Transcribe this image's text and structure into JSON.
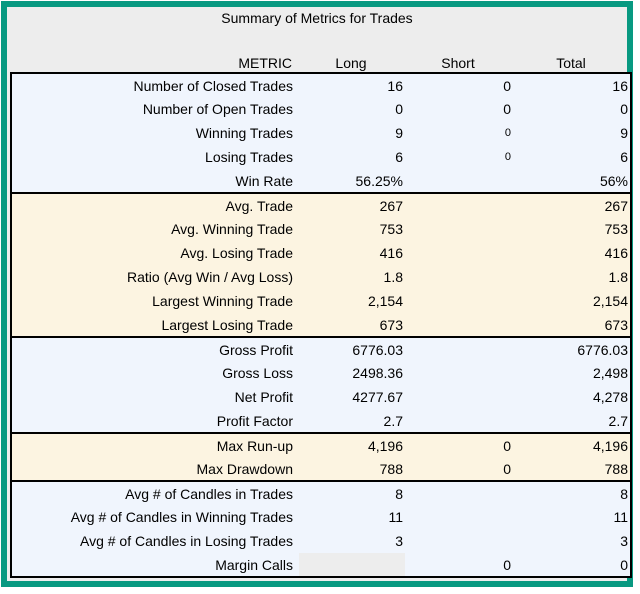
{
  "title": "Summary of Metrics for Trades",
  "columns": {
    "metric": "METRIC",
    "long": "Long",
    "short": "Short",
    "total": "Total"
  },
  "colors": {
    "frame_border": "#089981",
    "canvas_background": "#EDEDED",
    "section_blue": "#F0F5FD",
    "section_cream": "#FCF4E1",
    "placeholder_cell": "#EDEDED",
    "table_border": "#000000",
    "text": "#000000"
  },
  "chart_data": {
    "type": "table",
    "title": "Summary of Metrics for Trades",
    "columns": [
      "METRIC",
      "Long",
      "Short",
      "Total"
    ],
    "sections": [
      {
        "bg": "blue",
        "rows": [
          {
            "metric": "Number of Closed Trades",
            "long": "16",
            "short": "0",
            "total": "16"
          },
          {
            "metric": "Number of Open Trades",
            "long": "0",
            "short": "0",
            "total": "0"
          },
          {
            "metric": "Winning Trades",
            "long": "9",
            "short": "0",
            "total": "9",
            "short_small": true
          },
          {
            "metric": "Losing Trades",
            "long": "6",
            "short": "0",
            "total": "6",
            "short_small": true
          },
          {
            "metric": "Win Rate",
            "long": "56.25%",
            "short": "",
            "total": "56%"
          }
        ]
      },
      {
        "bg": "cream",
        "rows": [
          {
            "metric": "Avg. Trade",
            "long": "267",
            "short": "",
            "total": "267"
          },
          {
            "metric": "Avg. Winning Trade",
            "long": "753",
            "short": "",
            "total": "753"
          },
          {
            "metric": "Avg. Losing Trade",
            "long": "416",
            "short": "",
            "total": "416"
          },
          {
            "metric": "Ratio (Avg Win / Avg Loss)",
            "long": "1.8",
            "short": "",
            "total": "1.8"
          },
          {
            "metric": "Largest Winning Trade",
            "long": "2,154",
            "short": "",
            "total": "2,154"
          },
          {
            "metric": "Largest Losing Trade",
            "long": "673",
            "short": "",
            "total": "673"
          }
        ]
      },
      {
        "bg": "blue",
        "rows": [
          {
            "metric": "Gross Profit",
            "long": "6776.03",
            "short": "",
            "total": "6776.03"
          },
          {
            "metric": "Gross Loss",
            "long": "2498.36",
            "short": "",
            "total": "2,498"
          },
          {
            "metric": "Net Profit",
            "long": "4277.67",
            "short": "",
            "total": "4,278"
          },
          {
            "metric": "Profit Factor",
            "long": "2.7",
            "short": "",
            "total": "2.7"
          }
        ]
      },
      {
        "bg": "cream",
        "rows": [
          {
            "metric": "Max Run-up",
            "long": "4,196",
            "short": "0",
            "total": "4,196"
          },
          {
            "metric": "Max Drawdown",
            "long": "788",
            "short": "0",
            "total": "788"
          }
        ]
      },
      {
        "bg": "blue",
        "rows": [
          {
            "metric": "Avg # of Candles in Trades",
            "long": "8",
            "short": "",
            "total": "8"
          },
          {
            "metric": "Avg # of Candles in Winning Trades",
            "long": "11",
            "short": "",
            "total": "11"
          },
          {
            "metric": "Avg # of Candles in Losing Trades",
            "long": "3",
            "short": "",
            "total": "3"
          },
          {
            "metric": "Margin Calls",
            "long": "",
            "short": "0",
            "total": "0",
            "long_gray": true
          }
        ]
      }
    ]
  }
}
